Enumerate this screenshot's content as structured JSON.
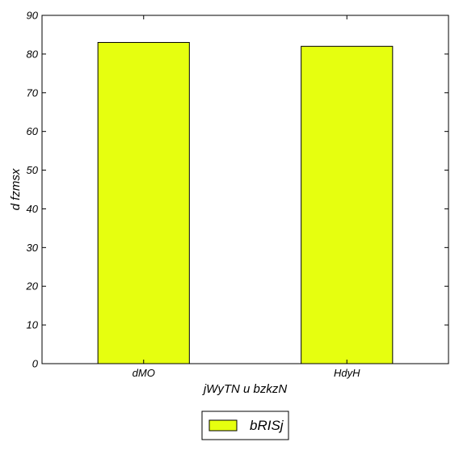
{
  "chart_data": {
    "type": "bar",
    "categories": [
      "dMO",
      "HdyH"
    ],
    "series": [
      {
        "name": "bRISj",
        "values": [
          83,
          82
        ],
        "color": "#e6ff0f"
      }
    ],
    "xlabel": "jWyTN u  bzkzN",
    "ylabel": "d fzmsx",
    "ylim": [
      0,
      90
    ],
    "yticks": [
      0,
      10,
      20,
      30,
      40,
      50,
      60,
      70,
      80,
      90
    ],
    "grid": false,
    "legend_position": "bottom-center"
  }
}
